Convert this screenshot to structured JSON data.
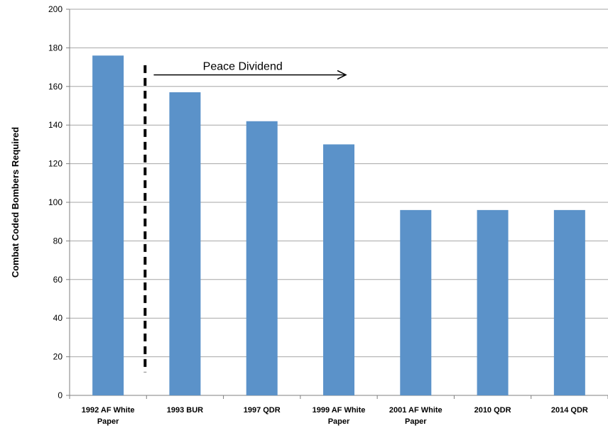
{
  "chart_data": {
    "type": "bar",
    "categories": [
      [
        "1992 AF White",
        "Paper"
      ],
      [
        "1993 BUR"
      ],
      [
        "1997 QDR"
      ],
      [
        "1999 AF White",
        "Paper"
      ],
      [
        "2001 AF White",
        "Paper"
      ],
      [
        "2010 QDR"
      ],
      [
        "2014 QDR"
      ]
    ],
    "values": [
      176,
      157,
      142,
      130,
      96,
      96,
      96
    ],
    "title": "",
    "xlabel": "",
    "ylabel": "Combat Coded Bombers Required",
    "ylim": [
      0,
      200
    ],
    "yticks": [
      0,
      20,
      40,
      60,
      80,
      100,
      120,
      140,
      160,
      180,
      200
    ],
    "grid": true,
    "legend": "none",
    "bar_color": "#5b92c9",
    "annotation": {
      "text": "Peace Dividend",
      "arrow_from_category": 1,
      "arrow_to_category": 3,
      "arrow_value": 166,
      "divider_value_top": 171,
      "divider_value_bottom": 12
    }
  }
}
